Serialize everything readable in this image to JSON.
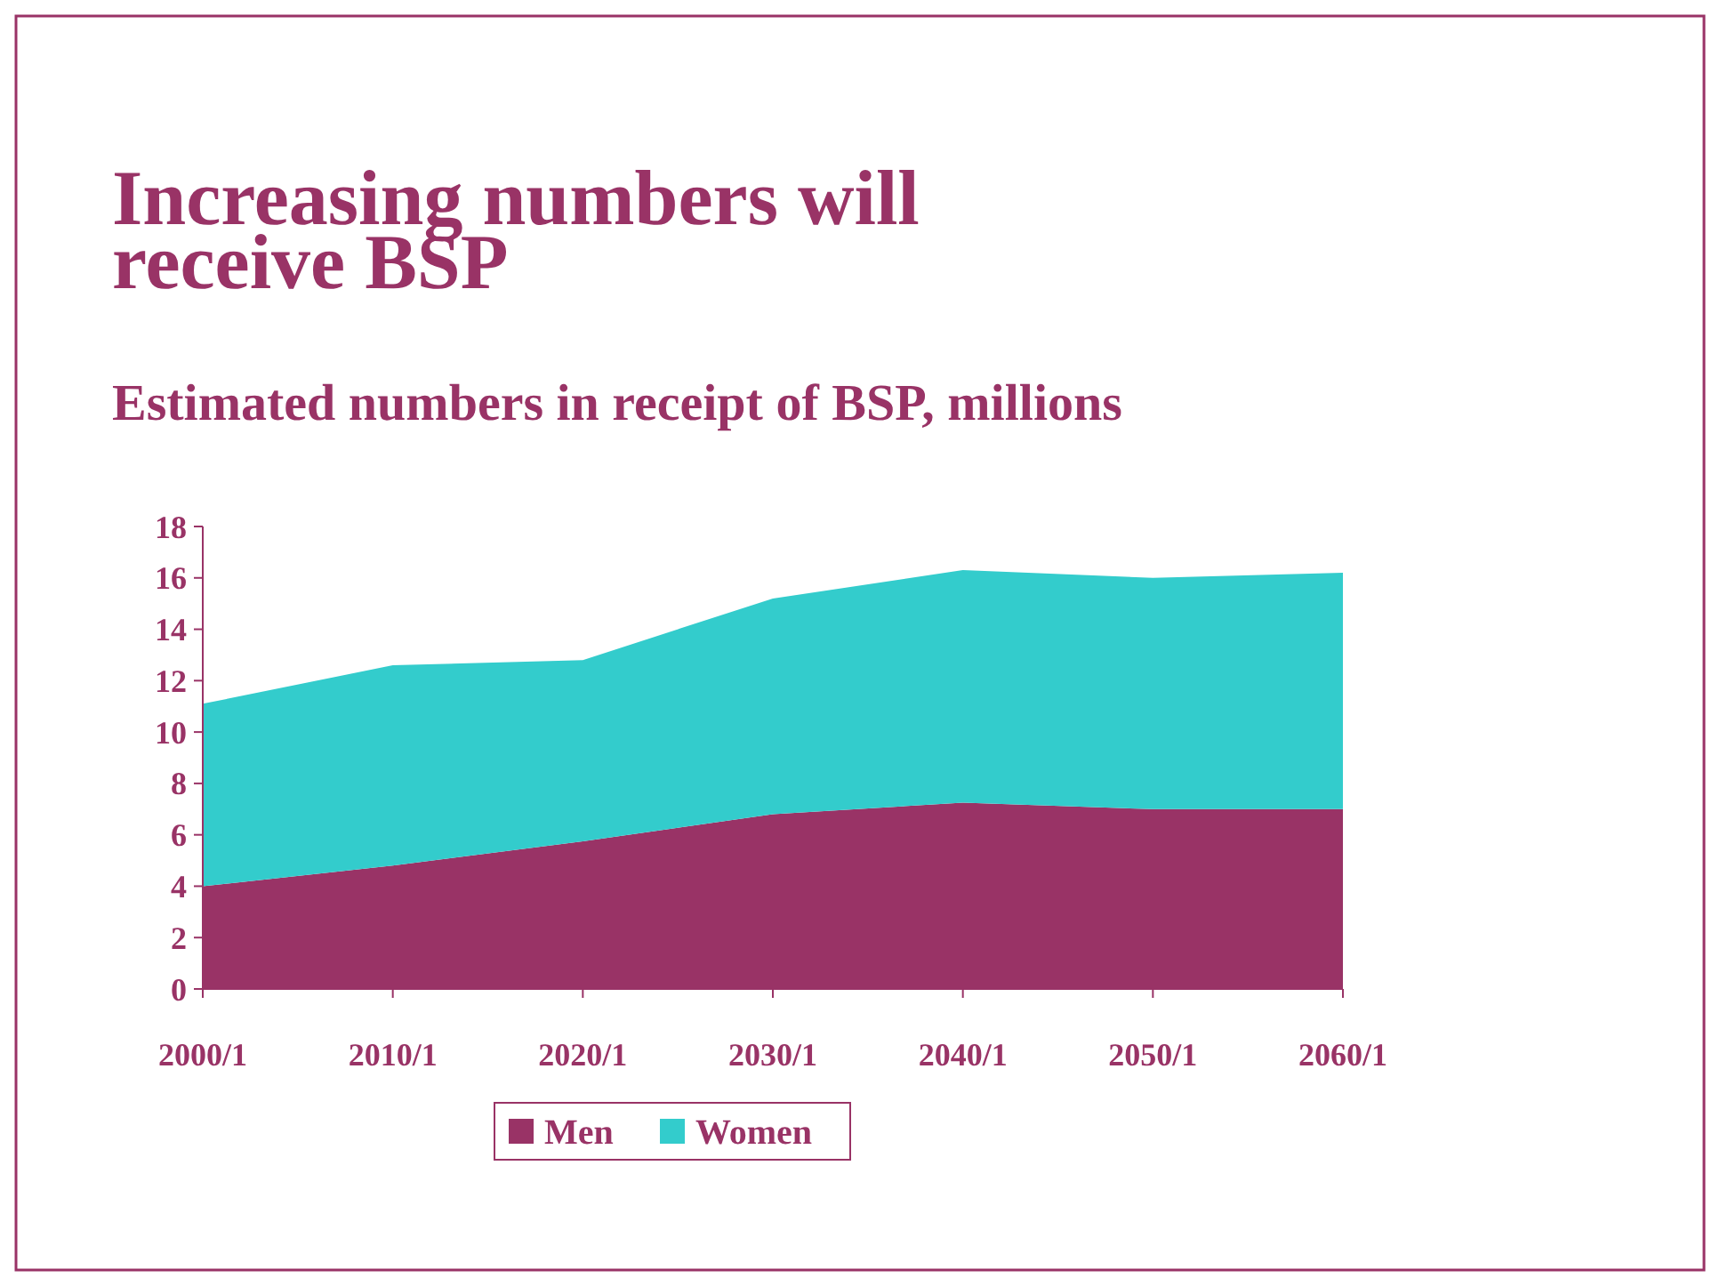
{
  "chart_data": {
    "type": "area",
    "stacked": true,
    "title": "Increasing numbers will receive BSP",
    "subtitle": "Estimated numbers in receipt of BSP, millions",
    "categories": [
      "2000/1",
      "2010/1",
      "2020/1",
      "2030/1",
      "2040/1",
      "2050/1",
      "2060/1"
    ],
    "series": [
      {
        "name": "Men",
        "color": "#993366",
        "values": [
          4.0,
          4.8,
          5.75,
          6.8,
          7.25,
          7.0,
          7.0
        ]
      },
      {
        "name": "Women",
        "color": "#33cccc",
        "values": [
          7.1,
          7.8,
          7.05,
          8.4,
          9.05,
          9.0,
          9.2
        ]
      }
    ],
    "ylim": [
      0,
      18
    ],
    "yticks": [
      0,
      2,
      4,
      6,
      8,
      10,
      12,
      14,
      16,
      18
    ],
    "grid": false,
    "legend": "bottom"
  }
}
